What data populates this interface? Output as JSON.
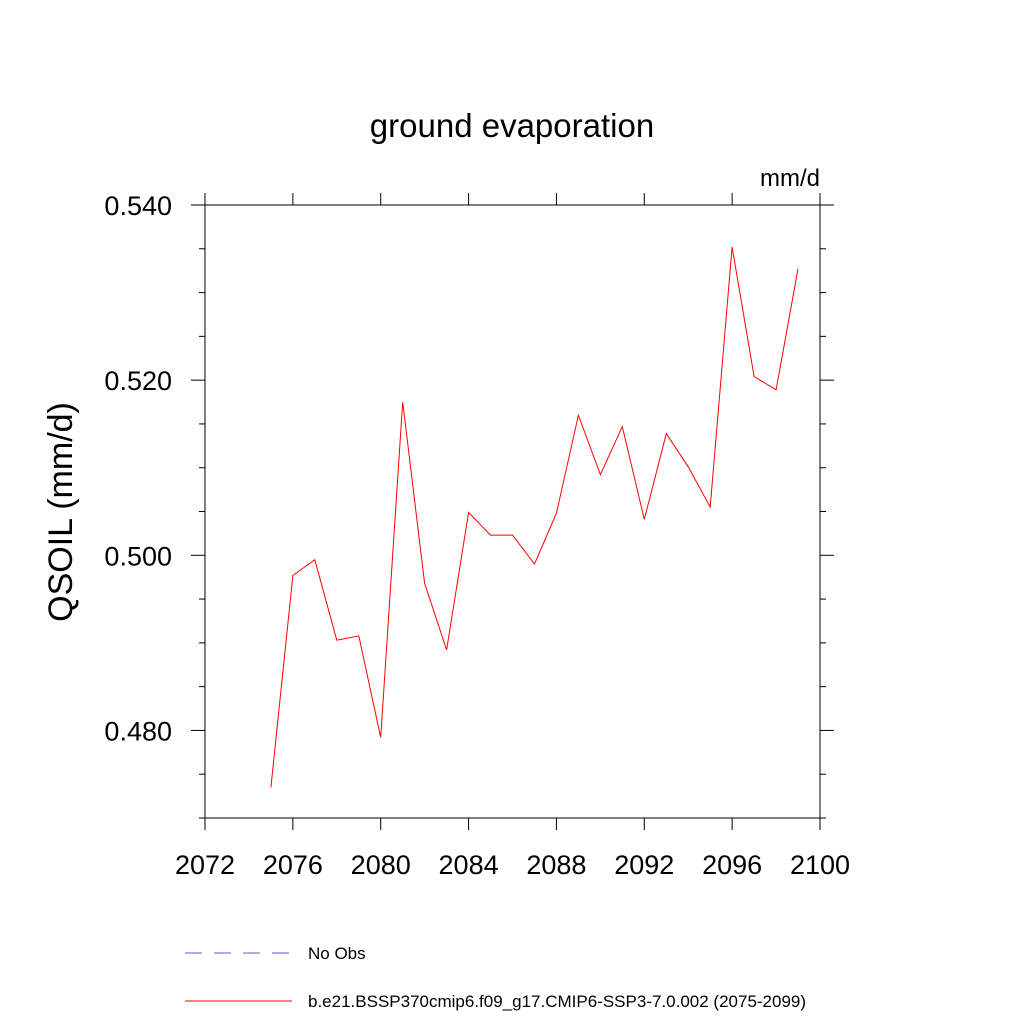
{
  "chart_data": {
    "type": "line",
    "title": "ground evaporation",
    "units": "mm/d",
    "ylabel": "QSOIL  (mm/d)",
    "xlim": [
      2072,
      2100
    ],
    "ylim": [
      0.47,
      0.54
    ],
    "x_ticks": [
      "2072",
      "2076",
      "2080",
      "2084",
      "2088",
      "2092",
      "2096",
      "2100"
    ],
    "y_ticks": [
      "0.480",
      "0.500",
      "0.520",
      "0.540"
    ],
    "grid": false,
    "legend_position": "bottom",
    "series": [
      {
        "name": "b.e21.BSSP370cmip6.f09_g17.CMIP6-SSP3-7.0.002 (2075-2099)",
        "color": "#ff0000",
        "style": "solid",
        "x": [
          2075,
          2076,
          2077,
          2078,
          2079,
          2080,
          2081,
          2082,
          2083,
          2084,
          2085,
          2086,
          2087,
          2088,
          2089,
          2090,
          2091,
          2092,
          2093,
          2094,
          2095,
          2096,
          2097,
          2098,
          2099
        ],
        "y": [
          0.4735,
          0.4977,
          0.4995,
          0.4903,
          0.4908,
          0.4792,
          0.5175,
          0.4968,
          0.4892,
          0.5049,
          0.5023,
          0.5023,
          0.499,
          0.5048,
          0.516,
          0.5092,
          0.5147,
          0.5041,
          0.5139,
          0.5101,
          0.5055,
          0.5352,
          0.5204,
          0.5189,
          0.5327
        ]
      }
    ],
    "legend": [
      {
        "label": "No Obs",
        "color": "#6a5acd",
        "style": "dashed"
      },
      {
        "label": "b.e21.BSSP370cmip6.f09_g17.CMIP6-SSP3-7.0.002 (2075-2099)",
        "color": "#ff0000",
        "style": "solid"
      }
    ]
  }
}
